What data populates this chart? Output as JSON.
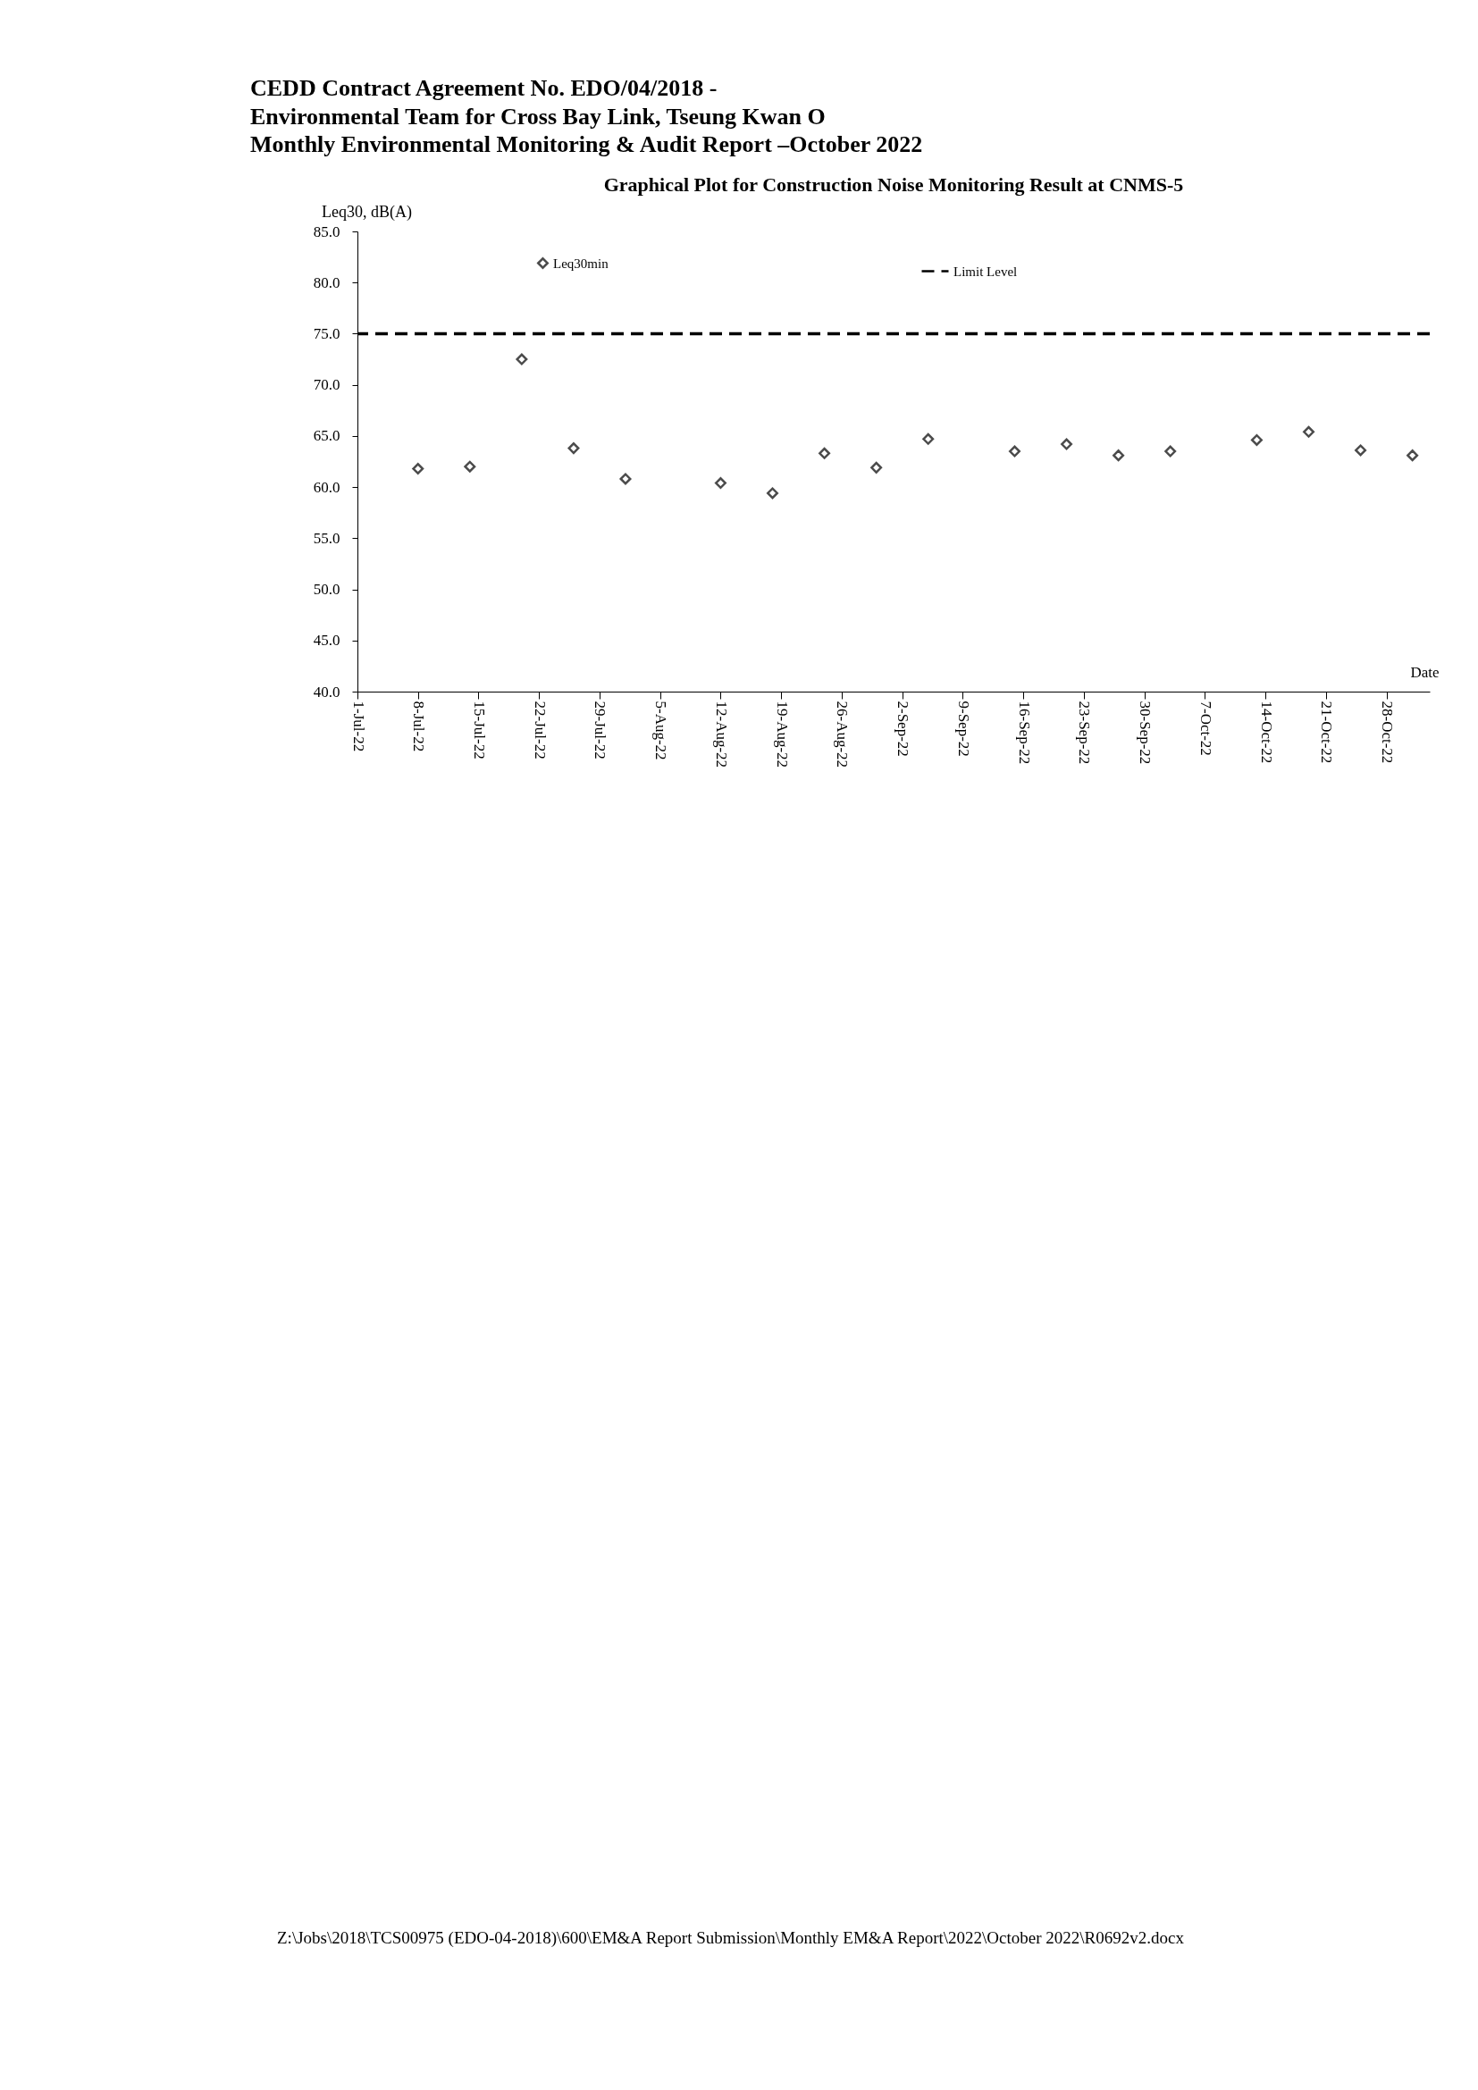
{
  "chart_data": {
    "type": "scatter",
    "title": "Graphical Plot for Construction Noise Monitoring Result at CNMS-5",
    "ylabel": "Leq30, dB(A)",
    "xlabel": "Date",
    "x": [
      "2022-07-08",
      "2022-07-14",
      "2022-07-20",
      "2022-07-26",
      "2022-08-01",
      "2022-08-12",
      "2022-08-18",
      "2022-08-24",
      "2022-08-30",
      "2022-09-05",
      "2022-09-15",
      "2022-09-21",
      "2022-09-27",
      "2022-10-03",
      "2022-10-13",
      "2022-10-19",
      "2022-10-25",
      "2022-10-31"
    ],
    "series": [
      {
        "name": "Leq30min",
        "color": "#000000",
        "values": [
          61.8,
          62.0,
          72.5,
          63.8,
          60.8,
          60.4,
          59.4,
          63.3,
          61.9,
          64.7,
          63.5,
          64.2,
          63.1,
          63.5,
          64.6,
          65.4,
          63.6,
          63.1
        ]
      }
    ],
    "ref_lines": [
      {
        "axis": "y",
        "value": 75,
        "label": "Limit Level",
        "color": "#000000",
        "line_style": "dashed"
      }
    ],
    "xlim": [
      "2022-07-01",
      "2022-11-02"
    ],
    "xticks": [
      {
        "value": "2022-07-01",
        "label": "1-Jul-22"
      },
      {
        "value": "2022-07-08",
        "label": "8-Jul-22"
      },
      {
        "value": "2022-07-15",
        "label": "15-Jul-22"
      },
      {
        "value": "2022-07-22",
        "label": "22-Jul-22"
      },
      {
        "value": "2022-07-29",
        "label": "29-Jul-22"
      },
      {
        "value": "2022-08-05",
        "label": "5-Aug-22"
      },
      {
        "value": "2022-08-12",
        "label": "12-Aug-22"
      },
      {
        "value": "2022-08-19",
        "label": "19-Aug-22"
      },
      {
        "value": "2022-08-26",
        "label": "26-Aug-22"
      },
      {
        "value": "2022-09-02",
        "label": "2-Sep-22"
      },
      {
        "value": "2022-09-09",
        "label": "9-Sep-22"
      },
      {
        "value": "2022-09-16",
        "label": "16-Sep-22"
      },
      {
        "value": "2022-09-23",
        "label": "23-Sep-22"
      },
      {
        "value": "2022-09-30",
        "label": "30-Sep-22"
      },
      {
        "value": "2022-10-07",
        "label": "7-Oct-22"
      },
      {
        "value": "2022-10-14",
        "label": "14-Oct-22"
      },
      {
        "value": "2022-10-21",
        "label": "21-Oct-22"
      },
      {
        "value": "2022-10-28",
        "label": "28-Oct-22"
      }
    ],
    "ylim": [
      40,
      85
    ],
    "yticks": [
      {
        "value": 40,
        "label": "40.0"
      },
      {
        "value": 45,
        "label": "45.0"
      },
      {
        "value": 50,
        "label": "50.0"
      },
      {
        "value": 55,
        "label": "55.0"
      },
      {
        "value": 60,
        "label": "60.0"
      },
      {
        "value": 65,
        "label": "65.0"
      },
      {
        "value": 70,
        "label": "70.0"
      },
      {
        "value": 75,
        "label": "75.0"
      },
      {
        "value": 80,
        "label": "80.0"
      },
      {
        "value": 85,
        "label": "85.0"
      }
    ],
    "grid": false,
    "legend": "top",
    "marker": "diamond",
    "annotations": [
      "CEDD Contract Agreement No. EDO/04/2018 -",
      "Environmental Team for Cross Bay Link, Tseung Kwan O",
      "Monthly Environmental Monitoring & Audit Report –October 2022",
      "Z:\\Jobs\\2018\\TCS00975 (EDO-04-2018)\\600\\EM&A Report Submission\\Monthly EM&A Report\\2022\\October 2022\\R0692v2.docx"
    ]
  }
}
